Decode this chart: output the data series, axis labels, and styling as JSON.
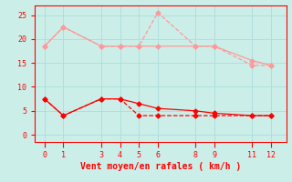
{
  "xlabel": "Vent moyen/en rafales ( km/h )",
  "bg_color": "#cceee8",
  "x_ticks": [
    0,
    1,
    3,
    4,
    5,
    6,
    8,
    9,
    11,
    12
  ],
  "y_ticks": [
    0,
    5,
    10,
    15,
    20,
    25
  ],
  "ylim": [
    -1.5,
    27
  ],
  "xlim": [
    -0.5,
    12.8
  ],
  "line1_x": [
    0,
    1,
    3,
    4,
    5,
    6,
    8,
    9,
    11,
    12
  ],
  "line1_y": [
    18.5,
    22.5,
    18.5,
    18.5,
    18.5,
    25.5,
    18.5,
    18.5,
    14.5,
    14.5
  ],
  "line1_color": "#ff9999",
  "line1_style": "--",
  "line1_marker": "D",
  "line1_markersize": 2.5,
  "line1_linewidth": 0.9,
  "line2_x": [
    0,
    1,
    3,
    4,
    5,
    6,
    8,
    9,
    11,
    12
  ],
  "line2_y": [
    18.5,
    22.5,
    18.5,
    18.5,
    18.5,
    18.5,
    18.5,
    18.5,
    15.5,
    14.5
  ],
  "line2_color": "#ff9999",
  "line2_style": "-",
  "line2_marker": "D",
  "line2_markersize": 2.5,
  "line2_linewidth": 0.9,
  "line3_x": [
    0,
    1,
    3,
    4,
    5,
    6,
    8,
    9,
    11,
    12
  ],
  "line3_y": [
    7.5,
    4.0,
    7.5,
    7.5,
    4.0,
    4.0,
    4.0,
    4.0,
    4.0,
    4.0
  ],
  "line3_color": "#ff0000",
  "line3_style": "--",
  "line3_marker": "D",
  "line3_markersize": 2.5,
  "line3_linewidth": 0.9,
  "line4_x": [
    0,
    1,
    3,
    4,
    5,
    6,
    8,
    9,
    11,
    12
  ],
  "line4_y": [
    7.5,
    4.0,
    7.5,
    7.5,
    6.5,
    5.5,
    5.0,
    4.5,
    4.0,
    4.0
  ],
  "line4_color": "#ff0000",
  "line4_style": "-",
  "line4_marker": "D",
  "line4_markersize": 2.5,
  "line4_linewidth": 0.9,
  "tick_color": "#ff0000",
  "tick_label_color": "#ff0000",
  "xlabel_color": "#ff0000",
  "xlabel_fontsize": 7,
  "tick_fontsize": 6,
  "grid_color": "#aadddd",
  "axis_color": "#ff0000",
  "grid_linewidth": 0.6
}
